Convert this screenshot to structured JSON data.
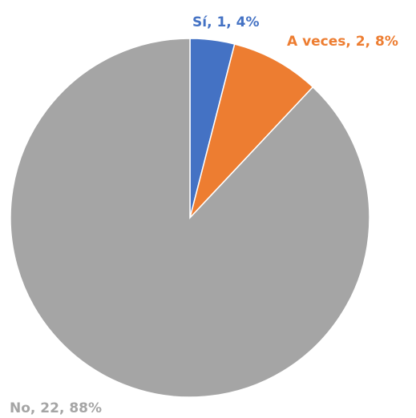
{
  "chart_data": {
    "type": "pie",
    "categories": [
      "Sí",
      "A veces",
      "No"
    ],
    "values": [
      1,
      2,
      22
    ],
    "value_labels": [
      "Sí, 1, 4%",
      "A veces, 2, 8%",
      "No, 22, 88%"
    ],
    "colors": [
      "#4472c4",
      "#ed7d31",
      "#a5a5a5"
    ]
  }
}
